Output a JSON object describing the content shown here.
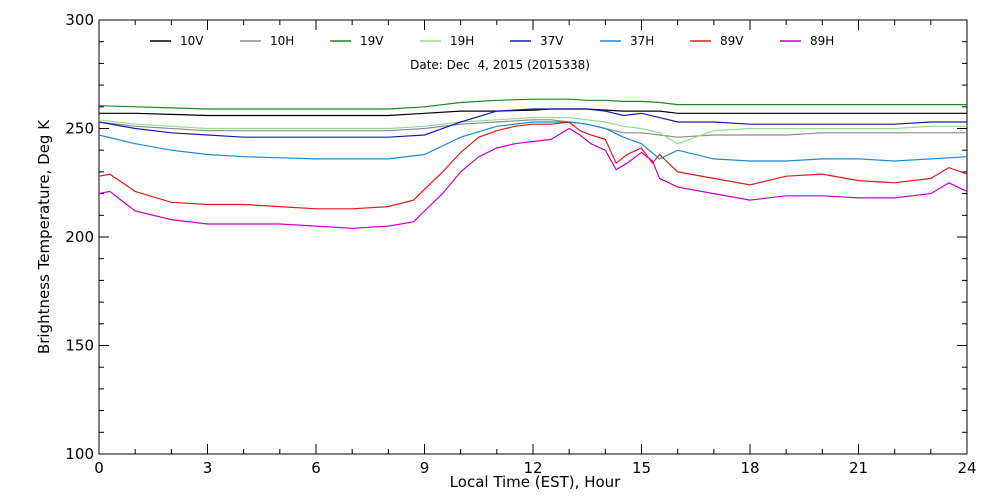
{
  "chart_data": {
    "type": "line",
    "subtitle": "Date: Dec  4, 2015 (2015338)",
    "xlabel": "Local Time (EST), Hour",
    "ylabel": "Brightness Temperature, Deg K",
    "xlim": [
      0,
      24
    ],
    "ylim": [
      100,
      300
    ],
    "xticks": [
      0,
      3,
      6,
      9,
      12,
      15,
      18,
      21,
      24
    ],
    "yticks": [
      100,
      150,
      200,
      250,
      300
    ],
    "grid": false,
    "legend_position": "top",
    "series": [
      {
        "name": "10V",
        "color": "#000000",
        "x": [
          0,
          1,
          2,
          3,
          4,
          5,
          6,
          7,
          8,
          9,
          10,
          11,
          12,
          12.5,
          13,
          13.5,
          14,
          14.5,
          15,
          15.5,
          16,
          17,
          18,
          19,
          20,
          21,
          22,
          23,
          24
        ],
        "y": [
          257,
          257,
          256.5,
          256,
          256,
          256,
          256,
          256,
          256,
          257,
          258,
          258,
          258.5,
          259,
          259,
          259,
          258.5,
          258,
          258,
          258,
          257,
          257,
          257,
          257,
          257,
          257,
          257,
          257,
          257
        ]
      },
      {
        "name": "10H",
        "color": "#8c8c8c",
        "x": [
          0,
          1,
          2,
          3,
          4,
          5,
          6,
          7,
          8,
          9,
          10,
          11,
          12,
          12.5,
          13,
          13.5,
          14,
          14.5,
          15,
          15.5,
          16,
          17,
          18,
          19,
          20,
          21,
          22,
          23,
          24
        ],
        "y": [
          253,
          251,
          250,
          249,
          249,
          249,
          249,
          249,
          249,
          250,
          252,
          253,
          254,
          254,
          253,
          252,
          250,
          248,
          248,
          247,
          246,
          247,
          247,
          247,
          248,
          248,
          248,
          248,
          248
        ]
      },
      {
        "name": "19V",
        "color": "#1a8a1a",
        "x": [
          0,
          1,
          2,
          3,
          4,
          5,
          6,
          7,
          8,
          9,
          10,
          11,
          12,
          12.5,
          13,
          13.5,
          14,
          14.5,
          15,
          15.5,
          16,
          17,
          18,
          19,
          20,
          21,
          22,
          23,
          24
        ],
        "y": [
          260.5,
          260,
          259.5,
          259,
          259,
          259,
          259,
          259,
          259,
          260,
          262,
          263,
          263.5,
          263.5,
          263.5,
          263,
          263,
          262.5,
          262.5,
          262,
          261,
          261,
          261,
          261,
          261,
          261,
          261,
          261,
          261
        ]
      },
      {
        "name": "19H",
        "color": "#90e090",
        "x": [
          0,
          1,
          2,
          3,
          4,
          5,
          6,
          7,
          8,
          9,
          10,
          11,
          12,
          12.5,
          13,
          13.5,
          14,
          14.5,
          15,
          15.5,
          16,
          17,
          18,
          19,
          20,
          21,
          22,
          23,
          24
        ],
        "y": [
          254,
          252,
          251,
          250,
          250,
          250,
          250,
          250,
          250,
          251,
          253,
          254,
          255,
          255,
          255,
          254,
          253,
          251,
          250,
          248,
          243,
          249,
          250,
          250,
          250,
          250,
          250,
          251,
          251
        ]
      },
      {
        "name": "37V",
        "color": "#1a1ab4",
        "x": [
          0,
          1,
          2,
          3,
          4,
          5,
          6,
          7,
          8,
          9,
          10,
          11,
          12,
          12.5,
          13,
          13.5,
          14,
          14.5,
          15,
          15.5,
          16,
          17,
          18,
          19,
          20,
          21,
          22,
          23,
          24
        ],
        "y": [
          253,
          250,
          248,
          247,
          246,
          246,
          246,
          246,
          246,
          247,
          253,
          258,
          259,
          259,
          259,
          259,
          258,
          256,
          257,
          255,
          253,
          253,
          252,
          252,
          252,
          252,
          252,
          253,
          253
        ]
      },
      {
        "name": "37H",
        "color": "#1c8cd8",
        "x": [
          0,
          1,
          2,
          3,
          4,
          5,
          6,
          7,
          8,
          9,
          10,
          11,
          12,
          12.5,
          13,
          13.5,
          14,
          14.5,
          15,
          15.5,
          16,
          17,
          18,
          19,
          20,
          21,
          22,
          23,
          24
        ],
        "y": [
          247,
          243,
          240,
          238,
          237,
          236.5,
          236,
          236,
          236,
          238,
          246,
          251,
          253,
          253,
          253,
          252,
          250,
          246,
          243,
          236,
          240,
          236,
          235,
          235,
          236,
          236,
          235,
          236,
          237
        ]
      },
      {
        "name": "89V",
        "color": "#e01a1a",
        "x": [
          0,
          0.3,
          1,
          2,
          3,
          4,
          5,
          6,
          7,
          8,
          8.7,
          9,
          9.5,
          10,
          10.5,
          11,
          11.5,
          12,
          12.5,
          13,
          13.3,
          13.6,
          14,
          14.3,
          14.6,
          15,
          15.3,
          15.5,
          16,
          17,
          18,
          19,
          20,
          21,
          22,
          23,
          23.5,
          24
        ],
        "y": [
          228,
          229,
          221,
          216,
          215,
          215,
          214,
          213,
          213,
          214,
          217,
          222,
          230,
          239,
          246,
          249,
          251,
          252,
          252,
          253,
          249,
          247,
          245,
          234,
          238,
          241,
          234,
          238,
          230,
          227,
          224,
          228,
          229,
          226,
          225,
          227,
          232,
          229
        ]
      },
      {
        "name": "89H",
        "color": "#c800c8",
        "x": [
          0,
          0.3,
          1,
          2,
          3,
          4,
          5,
          6,
          7,
          8,
          8.7,
          9,
          9.5,
          10,
          10.5,
          11,
          11.5,
          12,
          12.5,
          13,
          13.3,
          13.6,
          14,
          14.3,
          14.6,
          15,
          15.3,
          15.5,
          16,
          17,
          18,
          19,
          20,
          21,
          22,
          23,
          23.5,
          24
        ],
        "y": [
          220,
          221,
          212,
          208,
          206,
          206,
          206,
          205,
          204,
          205,
          207,
          212,
          220,
          230,
          237,
          241,
          243,
          244,
          245,
          250,
          247,
          243,
          240,
          231,
          234,
          239,
          235,
          227,
          223,
          220,
          217,
          219,
          219,
          218,
          218,
          220,
          225,
          221
        ]
      }
    ]
  }
}
